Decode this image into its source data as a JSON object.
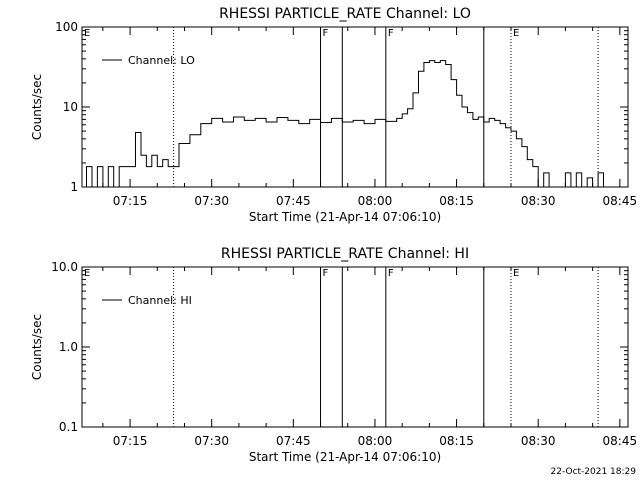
{
  "footer": {
    "date_stamp": "22-Oct-2021 18:29"
  },
  "chart_data": [
    {
      "type": "line",
      "title": "RHESSI PARTICLE_RATE Channel: LO",
      "xlabel": "Start Time (21-Apr-14 07:06:10)",
      "ylabel": "Counts/sec",
      "yscale": "log",
      "ylim": [
        1,
        100
      ],
      "xlim": [
        "07:06:10",
        "08:46:30"
      ],
      "yticks": [
        "1",
        "10",
        "100"
      ],
      "xticks": [
        "07:15",
        "07:30",
        "07:45",
        "08:00",
        "08:15",
        "08:30",
        "08:45"
      ],
      "legend": "top-left",
      "series": [
        {
          "name": "Channel: LO",
          "x": [
            "07:06",
            "07:07",
            "07:08",
            "07:09",
            "07:10",
            "07:11",
            "07:12",
            "07:13",
            "07:14",
            "07:15",
            "07:16",
            "07:17",
            "07:18",
            "07:19",
            "07:20",
            "07:21",
            "07:22",
            "07:23",
            "07:24",
            "07:26",
            "07:28",
            "07:30",
            "07:32",
            "07:34",
            "07:36",
            "07:38",
            "07:40",
            "07:42",
            "07:44",
            "07:46",
            "07:48",
            "07:50",
            "07:52",
            "07:54",
            "07:56",
            "07:58",
            "08:00",
            "08:02",
            "08:04",
            "08:05",
            "08:06",
            "08:07",
            "08:08",
            "08:09",
            "08:10",
            "08:11",
            "08:12",
            "08:13",
            "08:14",
            "08:15",
            "08:16",
            "08:17",
            "08:18",
            "08:19",
            "08:20",
            "08:21",
            "08:22",
            "08:23",
            "08:24",
            "08:25",
            "08:26",
            "08:27",
            "08:28",
            "08:29",
            "08:30",
            "08:31",
            "08:32",
            "08:33",
            "08:34",
            "08:35",
            "08:36",
            "08:37",
            "08:38",
            "08:39",
            "08:40",
            "08:41",
            "08:42"
          ],
          "values": [
            1,
            1.8,
            1,
            1.8,
            1,
            1.8,
            1,
            1.8,
            1.8,
            1.8,
            4.8,
            2.5,
            1.8,
            2.5,
            1.8,
            2.2,
            1.8,
            1.8,
            3.5,
            4.5,
            6.2,
            7.2,
            6.5,
            7.5,
            6.8,
            7.2,
            6.5,
            7.4,
            6.8,
            6.2,
            7,
            6.4,
            7.2,
            6.5,
            6.8,
            6.2,
            7,
            6.6,
            7.2,
            8.2,
            9.5,
            15,
            28,
            36,
            38,
            36,
            38,
            34,
            22,
            14,
            10,
            8.5,
            7,
            7.5,
            6.5,
            7.2,
            6.8,
            6.2,
            5.5,
            5,
            4,
            3.2,
            2.2,
            1.8,
            1,
            1.5,
            1,
            1,
            1,
            1.5,
            1,
            1.5,
            1,
            1.3,
            1,
            1.5,
            1
          ]
        }
      ],
      "annotations": [
        {
          "label": "E",
          "time": "07:06:10",
          "line": "none"
        },
        {
          "label": "",
          "time": "07:23",
          "line": "dotted"
        },
        {
          "label": "F",
          "time": "07:50",
          "line": "solid"
        },
        {
          "label": "",
          "time": "07:54",
          "line": "solid"
        },
        {
          "label": "F",
          "time": "08:02",
          "line": "solid"
        },
        {
          "label": "",
          "time": "08:20",
          "line": "solid"
        },
        {
          "label": "E",
          "time": "08:25",
          "line": "dotted"
        },
        {
          "label": "",
          "time": "08:41",
          "line": "dotted"
        }
      ]
    },
    {
      "type": "line",
      "title": "RHESSI PARTICLE_RATE Channel: HI",
      "xlabel": "Start Time (21-Apr-14 07:06:10)",
      "ylabel": "Counts/sec",
      "yscale": "log",
      "ylim": [
        0.1,
        10
      ],
      "xlim": [
        "07:06:10",
        "08:46:30"
      ],
      "yticks": [
        "0.1",
        "1.0",
        "10.0"
      ],
      "xticks": [
        "07:15",
        "07:30",
        "07:45",
        "08:00",
        "08:15",
        "08:30",
        "08:45"
      ],
      "legend": "top-left",
      "series": [
        {
          "name": "Channel: HI",
          "x": [],
          "values": []
        }
      ],
      "annotations": [
        {
          "label": "E",
          "time": "07:06:10",
          "line": "none"
        },
        {
          "label": "",
          "time": "07:23",
          "line": "dotted"
        },
        {
          "label": "F",
          "time": "07:50",
          "line": "solid"
        },
        {
          "label": "",
          "time": "07:54",
          "line": "solid"
        },
        {
          "label": "F",
          "time": "08:02",
          "line": "solid"
        },
        {
          "label": "",
          "time": "08:20",
          "line": "solid"
        },
        {
          "label": "E",
          "time": "08:25",
          "line": "dotted"
        },
        {
          "label": "",
          "time": "08:41",
          "line": "dotted"
        }
      ]
    }
  ]
}
